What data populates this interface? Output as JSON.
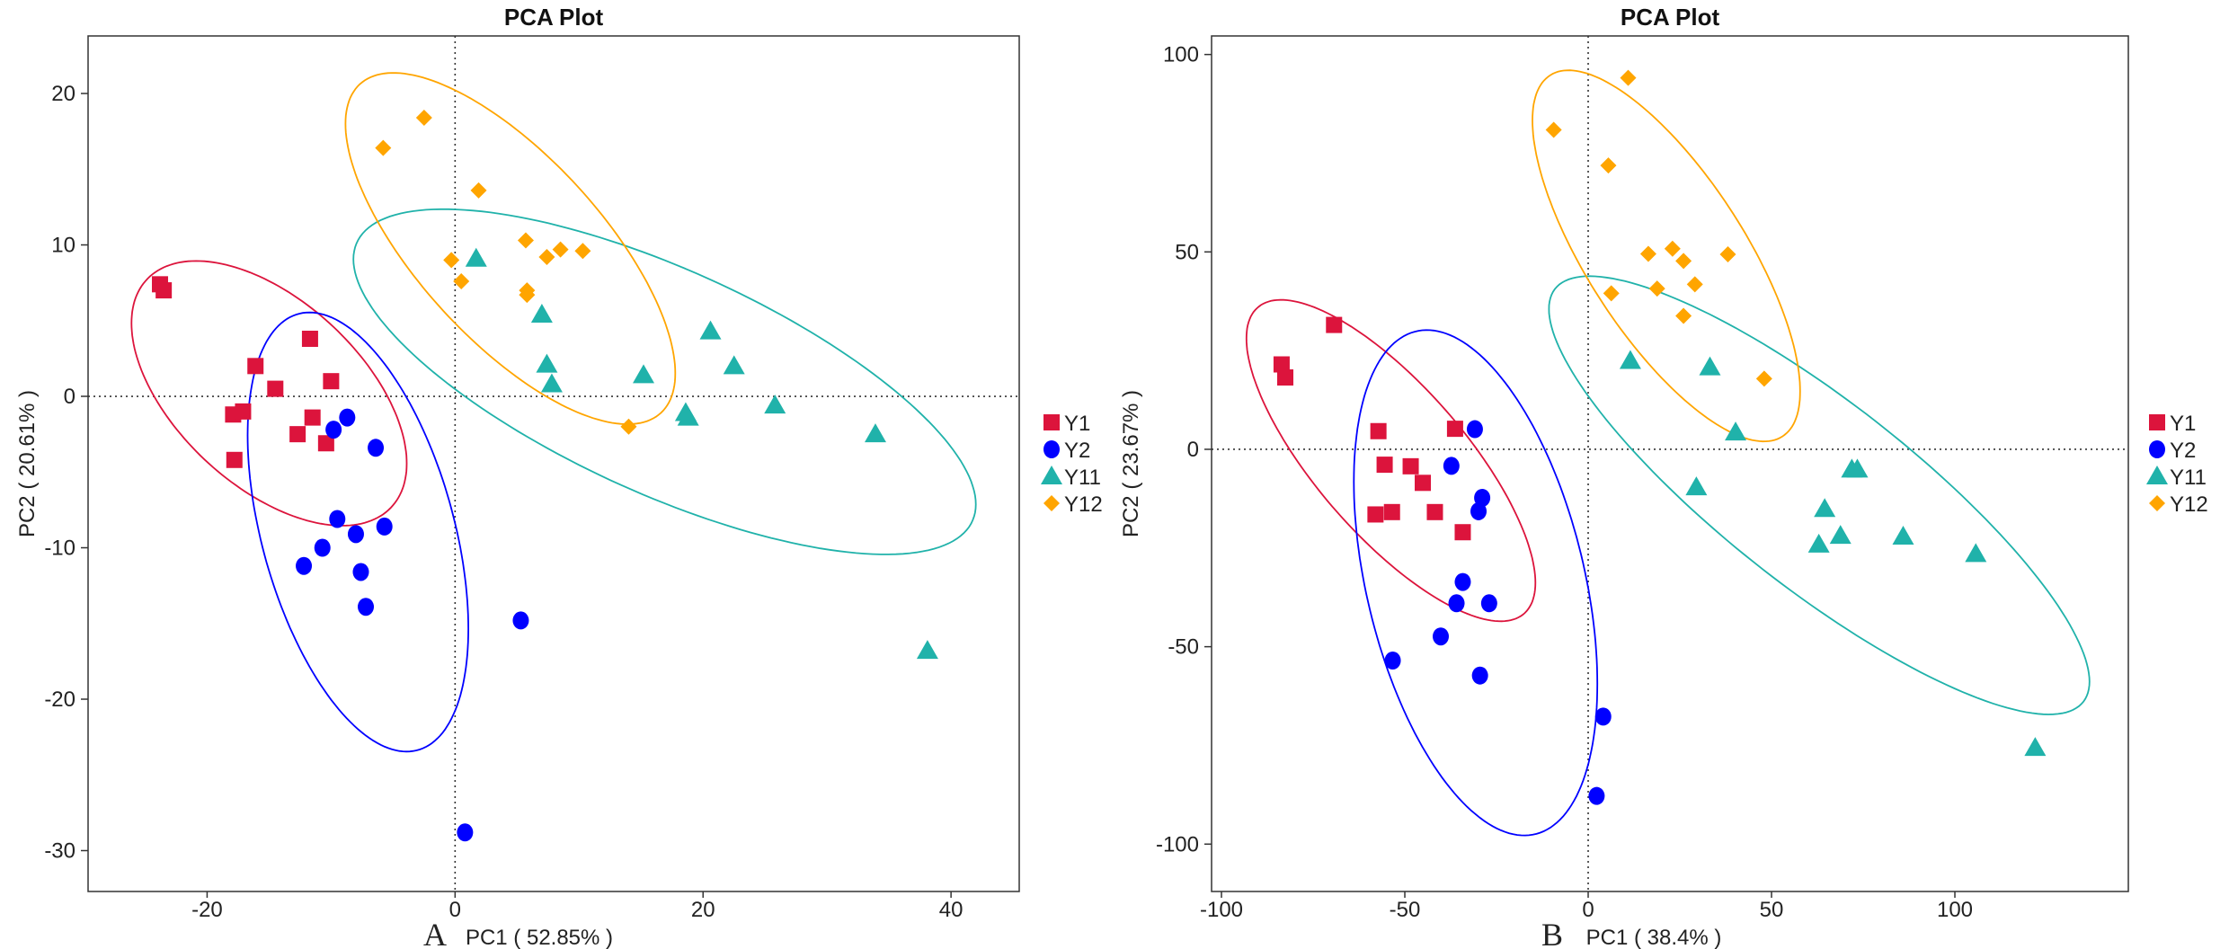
{
  "colors": {
    "Y1": "#DC143C",
    "Y2": "#0000FF",
    "Y11": "#20B2AA",
    "Y12": "#FFA500"
  },
  "chart_data": [
    {
      "type": "scatter",
      "panel_label": "A",
      "title": "PCA Plot",
      "xlabel": "PC1 ( 52.85% )",
      "ylabel": "PC2 ( 20.61% )",
      "xlim": [
        -29.6,
        45.5
      ],
      "ylim": [
        -32.7,
        23.8
      ],
      "xticks": [
        -20,
        0,
        20,
        40
      ],
      "yticks": [
        -30,
        -20,
        -10,
        0,
        10,
        20
      ],
      "reference_lines": {
        "x": 0,
        "y": 0,
        "style": "dotted"
      },
      "grid": false,
      "legend": "right",
      "series": [
        {
          "name": "Y1",
          "marker": "square",
          "color": "#DC143C",
          "points": [
            [
              -23.8,
              7.4
            ],
            [
              -23.5,
              7.0
            ],
            [
              -11.7,
              3.8
            ],
            [
              -16.1,
              2.0
            ],
            [
              -14.5,
              0.5
            ],
            [
              -10.0,
              1.0
            ],
            [
              -17.9,
              -1.2
            ],
            [
              -17.1,
              -1.0
            ],
            [
              -11.5,
              -1.4
            ],
            [
              -12.7,
              -2.5
            ],
            [
              -10.4,
              -3.1
            ],
            [
              -17.8,
              -4.2
            ]
          ],
          "ellipse": {
            "center": [
              -15.0,
              0.2
            ],
            "rx": 11.1,
            "ry": 8.74,
            "rho": -0.53
          }
        },
        {
          "name": "Y2",
          "marker": "circle",
          "color": "#0000FF",
          "points": [
            [
              -8.7,
              -1.4
            ],
            [
              -9.8,
              -2.2
            ],
            [
              -6.4,
              -3.4
            ],
            [
              -9.5,
              -8.1
            ],
            [
              -5.7,
              -8.6
            ],
            [
              -8.0,
              -9.1
            ],
            [
              -10.7,
              -10.0
            ],
            [
              -12.2,
              -11.2
            ],
            [
              -7.6,
              -11.6
            ],
            [
              -7.2,
              -13.9
            ],
            [
              5.3,
              -14.8
            ],
            [
              0.8,
              -28.8
            ]
          ],
          "ellipse": {
            "center": [
              -7.83,
              -8.96
            ],
            "rx": 8.9,
            "ry": 14.5,
            "rho": -0.44
          }
        },
        {
          "name": "Y11",
          "marker": "triangle",
          "color": "#20B2AA",
          "points": [
            [
              1.7,
              9.1
            ],
            [
              7.0,
              5.4
            ],
            [
              7.4,
              2.1
            ],
            [
              7.8,
              0.8
            ],
            [
              15.2,
              1.4
            ],
            [
              20.6,
              4.3
            ],
            [
              22.5,
              2.0
            ],
            [
              18.6,
              -1.1
            ],
            [
              18.8,
              -1.4
            ],
            [
              25.8,
              -0.6
            ],
            [
              33.9,
              -2.5
            ],
            [
              38.1,
              -16.8
            ]
          ],
          "ellipse": {
            "center": [
              16.9,
              0.96
            ],
            "rx": 25.1,
            "ry": 11.4,
            "rho": -0.71
          }
        },
        {
          "name": "Y12",
          "marker": "diamond",
          "color": "#FFA500",
          "points": [
            [
              -5.8,
              16.4
            ],
            [
              -2.5,
              18.4
            ],
            [
              1.9,
              13.6
            ],
            [
              -0.3,
              9.0
            ],
            [
              0.5,
              7.6
            ],
            [
              5.7,
              10.3
            ],
            [
              7.4,
              9.2
            ],
            [
              8.5,
              9.7
            ],
            [
              10.3,
              9.6
            ],
            [
              5.8,
              7.0
            ],
            [
              5.8,
              6.7
            ],
            [
              14.0,
              -2.0
            ]
          ],
          "ellipse": {
            "center": [
              4.46,
              9.76
            ],
            "rx": 13.3,
            "ry": 11.6,
            "rho": -0.71
          }
        }
      ]
    },
    {
      "type": "scatter",
      "panel_label": "B",
      "title": "PCA Plot",
      "xlabel": "PC1 ( 38.4% )",
      "ylabel": "PC2 ( 23.67% )",
      "xlim": [
        -102.7,
        147.3
      ],
      "ylim": [
        -112,
        104.7
      ],
      "xticks": [
        -100,
        -50,
        0,
        50,
        100
      ],
      "yticks": [
        -100,
        -50,
        0,
        50,
        100
      ],
      "reference_lines": {
        "x": 0,
        "y": 0,
        "style": "dotted"
      },
      "grid": false,
      "legend": "right",
      "series": [
        {
          "name": "Y1",
          "marker": "square",
          "color": "#DC143C",
          "points": [
            [
              -83.6,
              21.5
            ],
            [
              -82.6,
              18.2
            ],
            [
              -69.3,
              31.5
            ],
            [
              -57.2,
              4.6
            ],
            [
              -36.3,
              5.2
            ],
            [
              -55.5,
              -3.9
            ],
            [
              -48.4,
              -4.3
            ],
            [
              -45.1,
              -8.5
            ],
            [
              -58.0,
              -16.5
            ],
            [
              -53.5,
              -15.9
            ],
            [
              -41.8,
              -15.9
            ],
            [
              -34.2,
              -21.0
            ]
          ],
          "ellipse": {
            "center": [
              -53.8,
              -2.85
            ],
            "rx": 39.4,
            "ry": 40.7,
            "rho": -0.76
          }
        },
        {
          "name": "Y2",
          "marker": "circle",
          "color": "#0000FF",
          "points": [
            [
              -30.9,
              5.1
            ],
            [
              -37.3,
              -4.2
            ],
            [
              -28.9,
              -12.3
            ],
            [
              -29.9,
              -15.7
            ],
            [
              -34.2,
              -33.6
            ],
            [
              -35.9,
              -39.0
            ],
            [
              -27.0,
              -39.0
            ],
            [
              -40.2,
              -47.4
            ],
            [
              -53.3,
              -53.5
            ],
            [
              -29.5,
              -57.3
            ],
            [
              4.1,
              -67.7
            ],
            [
              2.3,
              -87.8
            ]
          ],
          "ellipse": {
            "center": [
              -30.7,
              -33.8
            ],
            "rx": 33.2,
            "ry": 64.0,
            "rho": -0.4
          }
        },
        {
          "name": "Y11",
          "marker": "triangle",
          "color": "#20B2AA",
          "points": [
            [
              11.5,
              22.4
            ],
            [
              33.2,
              20.8
            ],
            [
              40.2,
              4.3
            ],
            [
              29.5,
              -9.6
            ],
            [
              71.9,
              -5.1
            ],
            [
              73.4,
              -5.1
            ],
            [
              64.5,
              -15.1
            ],
            [
              62.9,
              -24.1
            ],
            [
              68.8,
              -21.9
            ],
            [
              85.9,
              -22.1
            ],
            [
              105.7,
              -26.5
            ],
            [
              121.9,
              -75.6
            ]
          ],
          "ellipse": {
            "center": [
              63.0,
              -11.65
            ],
            "rx": 73.7,
            "ry": 55.5,
            "rho": -0.85
          }
        },
        {
          "name": "Y12",
          "marker": "diamond",
          "color": "#FFA500",
          "points": [
            [
              10.9,
              94.1
            ],
            [
              -9.4,
              80.9
            ],
            [
              5.5,
              71.9
            ],
            [
              16.4,
              49.5
            ],
            [
              23.0,
              50.8
            ],
            [
              26.0,
              47.7
            ],
            [
              38.1,
              49.4
            ],
            [
              18.8,
              40.7
            ],
            [
              29.1,
              41.8
            ],
            [
              6.3,
              39.5
            ],
            [
              26.0,
              33.8
            ],
            [
              48.0,
              17.9
            ]
          ],
          "ellipse": {
            "center": [
              21.3,
              49.0
            ],
            "rx": 36.5,
            "ry": 47.0,
            "rho": -0.73
          }
        }
      ]
    }
  ]
}
